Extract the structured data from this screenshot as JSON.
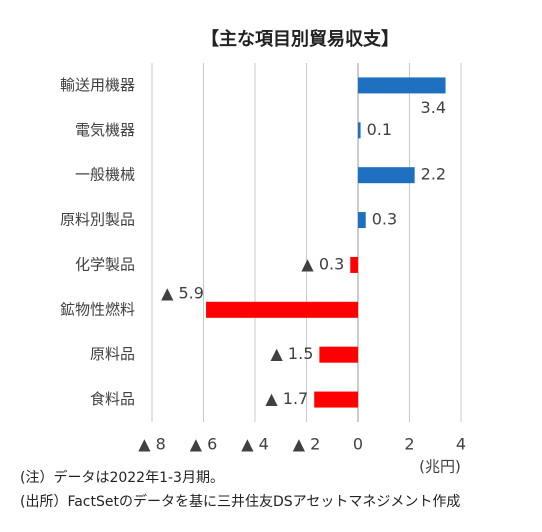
{
  "chart_data": {
    "type": "hbar",
    "title": "【主な項目別貿易収支】",
    "categories": [
      "輸送用機器",
      "電気機器",
      "一般機械",
      "原料別製品",
      "化学製品",
      "鉱物性燃料",
      "原料品",
      "食料品"
    ],
    "values": [
      3.4,
      0.1,
      2.2,
      0.3,
      -0.3,
      -5.9,
      -1.5,
      -1.7
    ],
    "value_labels": [
      "3.4",
      "0.1",
      "2.2",
      "0.3",
      "▲ 0.3",
      "▲ 5.9",
      "▲ 1.5",
      "▲ 1.7"
    ],
    "positive_color": "#1f6fc0",
    "negative_color": "#ff0000",
    "xlim": [
      -8,
      4
    ],
    "xticks": [
      {
        "value": -8,
        "label": "▲ 8"
      },
      {
        "value": -6,
        "label": "▲ 6"
      },
      {
        "value": -4,
        "label": "▲ 4"
      },
      {
        "value": -2,
        "label": "▲ 2"
      },
      0,
      2,
      4
    ],
    "x_unit": "(兆円)",
    "grid": true,
    "notes": [
      "(注）データは2022年1-3月期。",
      "(出所）FactSetのデータを基に三井住友DSアセットマネジメント作成"
    ]
  }
}
